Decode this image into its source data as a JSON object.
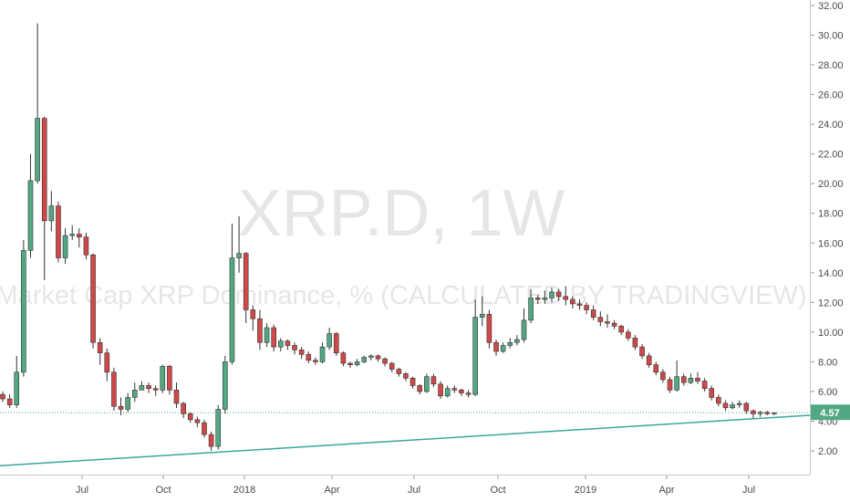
{
  "watermark": {
    "symbol": "XRP.D, 1W",
    "description": "Market Cap XRP Dominance, % (CALCULATED BY TRADINGVIEW)"
  },
  "price_badge": "4.57",
  "colors": {
    "up": "#53a883",
    "down": "#d04848",
    "wick": "#333333",
    "trendline": "#3aa79a",
    "badge": "#53a883"
  },
  "chart_data": {
    "type": "candlestick",
    "title": "",
    "xlabel": "",
    "ylabel": "",
    "ylim": [
      0,
      32.5
    ],
    "yticks": [
      "2.00",
      "4.00",
      "6.00",
      "8.00",
      "10.00",
      "12.00",
      "14.00",
      "16.00",
      "18.00",
      "20.00",
      "22.00",
      "24.00",
      "26.00",
      "28.00",
      "30.00",
      "32.00"
    ],
    "xticks": [
      {
        "label": "Jul",
        "x": "2017-07"
      },
      {
        "label": "Oct",
        "x": "2017-10"
      },
      {
        "label": "2018",
        "x": "2018-01"
      },
      {
        "label": "Apr",
        "x": "2018-04"
      },
      {
        "label": "Jul",
        "x": "2018-07"
      },
      {
        "label": "Oct",
        "x": "2018-10"
      },
      {
        "label": "2019",
        "x": "2019-01"
      },
      {
        "label": "Apr",
        "x": "2019-04"
      },
      {
        "label": "Jul",
        "x": "2019-07"
      }
    ],
    "grid": false,
    "last_value": 4.57,
    "trendline": {
      "start": [
        "2017-03",
        1.0
      ],
      "end": [
        "2019-09",
        4.4
      ]
    },
    "candles": [
      [
        5.8,
        5.5,
        6.0,
        5.3
      ],
      [
        5.5,
        5.1,
        5.8,
        4.9
      ],
      [
        5.1,
        7.3,
        8.4,
        4.9
      ],
      [
        7.3,
        15.5,
        16.2,
        7.0
      ],
      [
        15.5,
        20.2,
        22.0,
        15.0
      ],
      [
        20.2,
        24.4,
        30.8,
        20.0
      ],
      [
        24.4,
        17.5,
        24.5,
        13.5
      ],
      [
        17.5,
        18.5,
        19.5,
        16.8
      ],
      [
        18.5,
        15.0,
        18.8,
        14.7
      ],
      [
        15.0,
        16.5,
        17.0,
        14.6
      ],
      [
        16.5,
        16.6,
        17.2,
        16.2
      ],
      [
        16.6,
        16.4,
        17.0,
        15.7
      ],
      [
        16.4,
        15.2,
        16.7,
        14.9
      ],
      [
        15.2,
        9.3,
        15.3,
        8.9
      ],
      [
        9.3,
        8.6,
        9.6,
        7.8
      ],
      [
        8.6,
        7.3,
        8.9,
        6.7
      ],
      [
        7.3,
        5.0,
        7.6,
        4.7
      ],
      [
        5.0,
        4.8,
        5.6,
        4.4
      ],
      [
        4.8,
        5.6,
        5.9,
        4.6
      ],
      [
        5.6,
        6.1,
        6.6,
        5.3
      ],
      [
        6.1,
        6.4,
        6.7,
        6.1
      ],
      [
        6.4,
        6.2,
        6.6,
        5.9
      ],
      [
        6.2,
        6.1,
        6.4,
        5.7
      ],
      [
        6.1,
        7.7,
        7.8,
        5.9
      ],
      [
        7.7,
        6.1,
        7.8,
        5.8
      ],
      [
        6.1,
        5.2,
        6.6,
        4.9
      ],
      [
        5.2,
        4.5,
        5.3,
        4.2
      ],
      [
        4.5,
        4.1,
        4.6,
        3.9
      ],
      [
        4.1,
        3.9,
        4.3,
        3.6
      ],
      [
        3.9,
        3.1,
        4.1,
        2.9
      ],
      [
        3.1,
        2.3,
        3.3,
        2.0
      ],
      [
        2.3,
        4.8,
        5.1,
        2.1
      ],
      [
        4.8,
        8.0,
        8.4,
        4.5
      ],
      [
        8.0,
        15.0,
        17.3,
        7.8
      ],
      [
        15.0,
        15.3,
        17.8,
        14.0
      ],
      [
        15.3,
        11.5,
        15.4,
        10.6
      ],
      [
        11.5,
        10.9,
        11.8,
        10.1
      ],
      [
        10.9,
        9.3,
        11.5,
        8.8
      ],
      [
        9.3,
        10.3,
        10.6,
        9.0
      ],
      [
        10.3,
        9.0,
        10.5,
        8.7
      ],
      [
        9.0,
        9.4,
        9.6,
        8.7
      ],
      [
        9.4,
        9.1,
        9.5,
        8.8
      ],
      [
        9.1,
        8.8,
        9.3,
        8.5
      ],
      [
        8.8,
        8.5,
        9.0,
        8.2
      ],
      [
        8.5,
        8.1,
        8.7,
        7.9
      ],
      [
        8.1,
        8.0,
        8.3,
        7.8
      ],
      [
        8.0,
        9.0,
        9.3,
        7.9
      ],
      [
        9.0,
        9.9,
        10.3,
        8.8
      ],
      [
        9.9,
        8.6,
        10.0,
        8.4
      ],
      [
        8.6,
        7.9,
        8.7,
        7.7
      ],
      [
        7.9,
        7.8,
        8.0,
        7.6
      ],
      [
        7.8,
        8.0,
        8.2,
        7.7
      ],
      [
        8.0,
        8.3,
        8.4,
        7.9
      ],
      [
        8.3,
        8.4,
        8.5,
        8.1
      ],
      [
        8.4,
        8.2,
        8.5,
        8.0
      ],
      [
        8.2,
        7.9,
        8.3,
        7.7
      ],
      [
        7.9,
        7.5,
        8.0,
        7.3
      ],
      [
        7.5,
        7.2,
        7.6,
        7.0
      ],
      [
        7.2,
        6.9,
        7.3,
        6.7
      ],
      [
        6.9,
        6.4,
        7.0,
        6.2
      ],
      [
        6.4,
        6.0,
        6.5,
        5.8
      ],
      [
        6.0,
        7.0,
        7.2,
        5.9
      ],
      [
        7.0,
        6.5,
        7.2,
        6.3
      ],
      [
        6.5,
        5.7,
        6.7,
        5.5
      ],
      [
        5.7,
        6.2,
        6.4,
        5.6
      ],
      [
        6.2,
        6.1,
        6.4,
        5.9
      ],
      [
        6.1,
        5.9,
        6.2,
        5.7
      ],
      [
        5.9,
        5.8,
        6.1,
        5.6
      ],
      [
        5.8,
        11.0,
        12.2,
        5.7
      ],
      [
        11.0,
        11.2,
        12.4,
        10.4
      ],
      [
        11.2,
        9.3,
        11.5,
        8.9
      ],
      [
        9.3,
        8.7,
        9.5,
        8.4
      ],
      [
        8.7,
        9.1,
        9.3,
        8.6
      ],
      [
        9.1,
        9.3,
        9.6,
        8.9
      ],
      [
        9.3,
        9.5,
        9.8,
        9.1
      ],
      [
        9.5,
        10.8,
        11.6,
        9.3
      ],
      [
        10.8,
        12.3,
        12.9,
        10.6
      ],
      [
        12.3,
        12.2,
        12.5,
        11.9
      ],
      [
        12.2,
        12.3,
        12.8,
        11.9
      ],
      [
        12.3,
        12.7,
        13.0,
        12.0
      ],
      [
        12.7,
        12.4,
        12.9,
        12.1
      ],
      [
        12.4,
        12.2,
        13.1,
        11.8
      ],
      [
        12.2,
        11.9,
        12.4,
        11.6
      ],
      [
        11.9,
        11.8,
        12.2,
        11.5
      ],
      [
        11.8,
        11.5,
        12.0,
        11.2
      ],
      [
        11.5,
        11.0,
        11.8,
        10.8
      ],
      [
        11.0,
        10.7,
        11.4,
        10.4
      ],
      [
        10.7,
        10.6,
        11.2,
        10.3
      ],
      [
        10.6,
        10.4,
        10.8,
        10.2
      ],
      [
        10.4,
        10.0,
        10.5,
        9.8
      ],
      [
        10.0,
        9.6,
        10.2,
        9.4
      ],
      [
        9.6,
        9.0,
        9.8,
        8.8
      ],
      [
        9.0,
        8.4,
        9.2,
        8.2
      ],
      [
        8.4,
        7.8,
        8.6,
        7.6
      ],
      [
        7.8,
        7.3,
        8.0,
        7.1
      ],
      [
        7.3,
        6.8,
        7.5,
        6.6
      ],
      [
        6.8,
        6.1,
        7.0,
        5.9
      ],
      [
        6.1,
        7.0,
        8.1,
        6.0
      ],
      [
        7.0,
        6.6,
        7.2,
        6.4
      ],
      [
        6.6,
        6.9,
        7.2,
        6.5
      ],
      [
        6.9,
        6.7,
        7.3,
        6.5
      ],
      [
        6.7,
        6.2,
        6.9,
        6.0
      ],
      [
        6.2,
        5.6,
        6.4,
        5.4
      ],
      [
        5.6,
        5.2,
        5.8,
        5.0
      ],
      [
        5.2,
        4.9,
        5.4,
        4.7
      ],
      [
        4.9,
        5.1,
        5.3,
        4.8
      ],
      [
        5.1,
        5.2,
        5.4,
        4.9
      ],
      [
        5.2,
        4.7,
        5.3,
        4.5
      ],
      [
        4.7,
        4.5,
        4.8,
        4.2
      ],
      [
        4.5,
        4.6,
        4.7,
        4.3
      ],
      [
        4.6,
        4.5,
        4.7,
        4.4
      ],
      [
        4.5,
        4.57,
        4.6,
        4.4
      ]
    ]
  }
}
